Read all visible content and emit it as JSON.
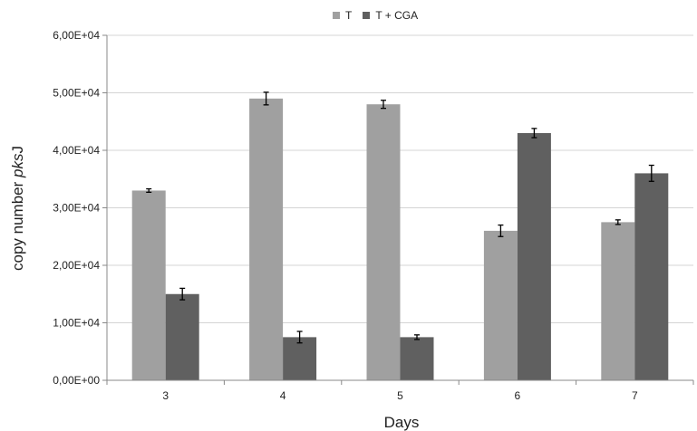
{
  "chart_data": {
    "type": "bar",
    "title": "",
    "xlabel": "Days",
    "ylabel_prefix": "copy number ",
    "ylabel_italic": "pks",
    "ylabel_suffix": "J",
    "categories": [
      "3",
      "4",
      "5",
      "6",
      "7"
    ],
    "ylim": [
      0,
      60000
    ],
    "yticks": [
      0,
      10000,
      20000,
      30000,
      40000,
      50000,
      60000
    ],
    "ytick_labels": [
      "0,00E+00",
      "1,00E+04",
      "2,00E+04",
      "3,00E+04",
      "4,00E+04",
      "5,00E+04",
      "6,00E+04"
    ],
    "grid": true,
    "legend_position": "top-center",
    "series": [
      {
        "name": "T",
        "color": "#a0a0a0",
        "values": [
          33000,
          49000,
          48000,
          26000,
          27500
        ],
        "errors": [
          300,
          1100,
          700,
          1000,
          400
        ]
      },
      {
        "name": "T + CGA",
        "color": "#606060",
        "values": [
          15000,
          7500,
          7500,
          43000,
          36000
        ],
        "errors": [
          1000,
          1000,
          400,
          800,
          1400
        ]
      }
    ]
  }
}
